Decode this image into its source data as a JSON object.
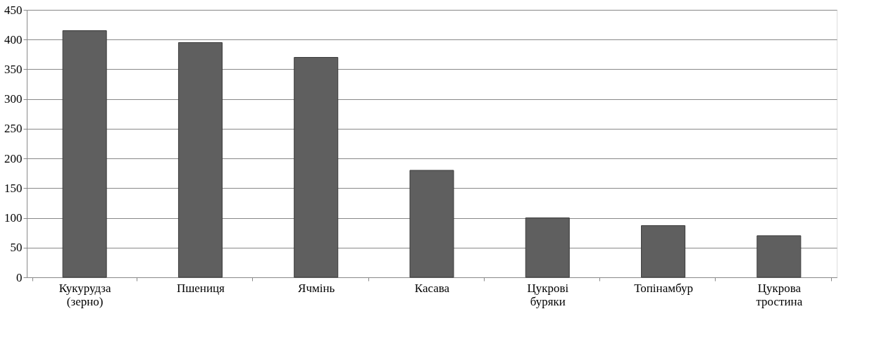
{
  "chart_data": {
    "type": "bar",
    "categories": [
      "Кукурудза (зерно)",
      "Пшениця",
      "Ячмінь",
      "Касава",
      "Цукрові буряки",
      "Топінамбур",
      "Цукрова тростина"
    ],
    "values": [
      415,
      395,
      370,
      180,
      100,
      87,
      70
    ],
    "color": "#5f5f5f",
    "ylim": [
      0,
      450
    ],
    "yticks": [
      0,
      50,
      100,
      150,
      200,
      250,
      300,
      350,
      400,
      450
    ],
    "grid": "y"
  }
}
